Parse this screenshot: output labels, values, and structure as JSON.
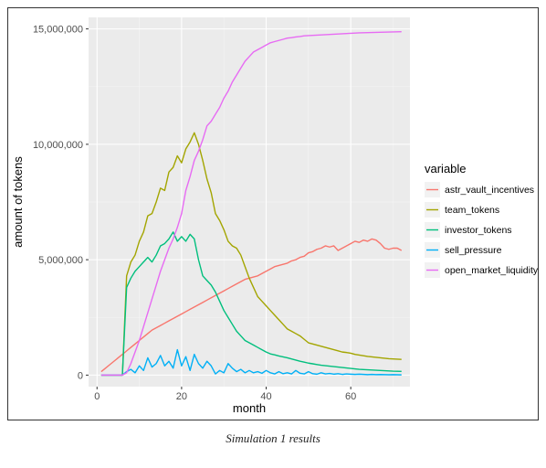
{
  "caption": "Simulation 1 results",
  "chart_data": {
    "type": "line",
    "title": "",
    "xlabel": "month",
    "ylabel": "amount of tokens",
    "xlim": [
      -2,
      74
    ],
    "ylim": [
      -500000,
      15500000
    ],
    "x_ticks": [
      0,
      20,
      40,
      60
    ],
    "y_ticks": [
      0,
      5000000,
      10000000,
      15000000
    ],
    "y_tick_labels": [
      "0",
      "5,000,000",
      "10,000,000",
      "15,000,000"
    ],
    "grid": true,
    "legend": {
      "title": "variable",
      "placement": "right"
    },
    "x": [
      1,
      2,
      3,
      4,
      5,
      6,
      7,
      8,
      9,
      10,
      11,
      12,
      13,
      14,
      15,
      16,
      17,
      18,
      19,
      20,
      21,
      22,
      23,
      24,
      25,
      26,
      27,
      28,
      29,
      30,
      31,
      32,
      33,
      34,
      35,
      36,
      37,
      38,
      39,
      40,
      41,
      42,
      43,
      44,
      45,
      46,
      47,
      48,
      49,
      50,
      51,
      52,
      53,
      54,
      55,
      56,
      57,
      58,
      59,
      60,
      61,
      62,
      63,
      64,
      65,
      66,
      67,
      68,
      69,
      70,
      71,
      72
    ],
    "series": [
      {
        "name": "astr_vault_incentives",
        "color": "#F8766D",
        "values": [
          150000,
          300000,
          450000,
          600000,
          750000,
          900000,
          1050000,
          1200000,
          1350000,
          1500000,
          1650000,
          1800000,
          1950000,
          2050000,
          2150000,
          2250000,
          2350000,
          2450000,
          2550000,
          2650000,
          2750000,
          2850000,
          2950000,
          3050000,
          3150000,
          3250000,
          3350000,
          3450000,
          3550000,
          3650000,
          3750000,
          3850000,
          3950000,
          4050000,
          4150000,
          4200000,
          4250000,
          4300000,
          4400000,
          4500000,
          4600000,
          4700000,
          4750000,
          4800000,
          4850000,
          4950000,
          5000000,
          5100000,
          5150000,
          5300000,
          5350000,
          5450000,
          5500000,
          5600000,
          5550000,
          5600000,
          5400000,
          5500000,
          5600000,
          5700000,
          5800000,
          5750000,
          5850000,
          5800000,
          5900000,
          5850000,
          5700000,
          5500000,
          5450000,
          5500000,
          5500000,
          5400000
        ]
      },
      {
        "name": "team_tokens",
        "color": "#A3A500",
        "values": [
          0,
          0,
          0,
          0,
          0,
          0,
          4300000,
          4900000,
          5200000,
          5800000,
          6200000,
          6900000,
          7000000,
          7500000,
          8100000,
          8000000,
          8800000,
          9000000,
          9500000,
          9200000,
          9800000,
          10100000,
          10500000,
          10000000,
          9300000,
          8500000,
          7900000,
          7000000,
          6700000,
          6300000,
          5800000,
          5600000,
          5500000,
          5200000,
          4700000,
          4200000,
          3800000,
          3400000,
          3200000,
          3000000,
          2800000,
          2600000,
          2400000,
          2200000,
          2000000,
          1900000,
          1800000,
          1700000,
          1550000,
          1400000,
          1350000,
          1300000,
          1250000,
          1200000,
          1150000,
          1100000,
          1050000,
          1000000,
          980000,
          950000,
          900000,
          870000,
          840000,
          810000,
          790000,
          770000,
          750000,
          730000,
          710000,
          700000,
          690000,
          680000
        ]
      },
      {
        "name": "investor_tokens",
        "color": "#00BF7D",
        "values": [
          0,
          0,
          0,
          0,
          0,
          0,
          3800000,
          4200000,
          4500000,
          4700000,
          4900000,
          5100000,
          4900000,
          5200000,
          5600000,
          5700000,
          5900000,
          6200000,
          5800000,
          6000000,
          5800000,
          6100000,
          5900000,
          5000000,
          4300000,
          4100000,
          3900000,
          3600000,
          3200000,
          2800000,
          2500000,
          2200000,
          1900000,
          1700000,
          1500000,
          1400000,
          1300000,
          1200000,
          1100000,
          1000000,
          920000,
          880000,
          830000,
          790000,
          750000,
          700000,
          650000,
          600000,
          560000,
          520000,
          490000,
          460000,
          430000,
          410000,
          390000,
          370000,
          350000,
          330000,
          310000,
          290000,
          270000,
          250000,
          240000,
          230000,
          220000,
          210000,
          200000,
          190000,
          180000,
          170000,
          165000,
          160000
        ]
      },
      {
        "name": "sell_pressure",
        "color": "#00B0F6",
        "values": [
          0,
          0,
          0,
          0,
          0,
          0,
          150000,
          250000,
          100000,
          400000,
          200000,
          750000,
          350000,
          500000,
          850000,
          400000,
          600000,
          300000,
          1100000,
          400000,
          800000,
          200000,
          900000,
          500000,
          300000,
          600000,
          400000,
          50000,
          200000,
          100000,
          500000,
          300000,
          150000,
          250000,
          100000,
          200000,
          100000,
          150000,
          80000,
          200000,
          100000,
          50000,
          150000,
          60000,
          100000,
          50000,
          200000,
          80000,
          50000,
          150000,
          60000,
          40000,
          100000,
          50000,
          70000,
          40000,
          60000,
          30000,
          50000,
          40000,
          30000,
          40000,
          30000,
          20000,
          30000,
          20000,
          25000,
          20000,
          15000,
          20000,
          15000,
          10000
        ]
      },
      {
        "name": "open_market_liquidity",
        "color": "#E76BF3",
        "values": [
          0,
          0,
          0,
          0,
          0,
          0,
          100000,
          500000,
          1000000,
          1500000,
          2100000,
          2700000,
          3300000,
          3900000,
          4500000,
          5000000,
          5500000,
          5900000,
          6400000,
          7000000,
          8000000,
          8600000,
          9300000,
          9700000,
          10200000,
          10800000,
          11000000,
          11300000,
          11600000,
          12000000,
          12300000,
          12700000,
          13000000,
          13300000,
          13600000,
          13800000,
          14000000,
          14100000,
          14200000,
          14300000,
          14400000,
          14450000,
          14500000,
          14550000,
          14600000,
          14620000,
          14650000,
          14670000,
          14700000,
          14710000,
          14720000,
          14730000,
          14740000,
          14750000,
          14760000,
          14770000,
          14780000,
          14790000,
          14800000,
          14810000,
          14820000,
          14830000,
          14835000,
          14840000,
          14845000,
          14850000,
          14855000,
          14860000,
          14865000,
          14870000,
          14875000,
          14880000
        ]
      }
    ]
  }
}
